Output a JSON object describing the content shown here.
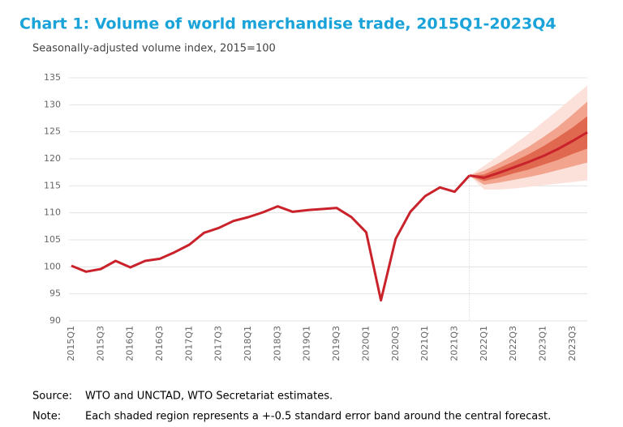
{
  "chart_data": {
    "type": "line",
    "title": "Chart 1: Volume of world merchandise trade, 2015Q1-2023Q4",
    "subtitle": "Seasonally-adjusted volume index, 2015=100",
    "categories": [
      "2015Q1",
      null,
      "2015Q3",
      null,
      "2016Q1",
      null,
      "2016Q3",
      null,
      "2017Q1",
      null,
      "2017Q3",
      null,
      "2018Q1",
      null,
      "2018Q3",
      null,
      "2019Q1",
      null,
      "2019Q3",
      null,
      "2020Q1",
      null,
      "2020Q3",
      null,
      "2021Q1",
      null,
      "2021Q3",
      null,
      "2022Q1",
      null,
      "2022Q3",
      null,
      "2023Q1",
      null,
      "2023Q3",
      null
    ],
    "series": [
      {
        "color": "#c9222b",
        "values": [
          100.2,
          99.1,
          99.6,
          101.1,
          99.9,
          101.1,
          101.5,
          102.7,
          104.1,
          106.3,
          107.2,
          108.5,
          109.2,
          110.1,
          111.2,
          110.2,
          110.5,
          110.7,
          110.9,
          109.2,
          106.4,
          93.8,
          105.2,
          110.2,
          113.1,
          114.7,
          113.9,
          116.9,
          null,
          null,
          null,
          null,
          null,
          null,
          null,
          null
        ]
      },
      {
        "color": "#c9222b",
        "values": [
          null,
          null,
          null,
          null,
          null,
          null,
          null,
          null,
          null,
          null,
          null,
          null,
          null,
          null,
          null,
          null,
          null,
          null,
          null,
          null,
          null,
          null,
          null,
          null,
          null,
          null,
          null,
          116.9,
          116.5,
          117.4,
          118.4,
          119.4,
          120.5,
          121.8,
          123.3,
          124.9
        ]
      }
    ],
    "forecast_bands": [
      {
        "color": "#fbe1da",
        "low": [
          null,
          null,
          null,
          null,
          null,
          null,
          null,
          null,
          null,
          null,
          null,
          null,
          null,
          null,
          null,
          null,
          null,
          null,
          null,
          null,
          null,
          null,
          null,
          null,
          null,
          null,
          null,
          116.9,
          114.3,
          114.3,
          114.5,
          114.8,
          115.1,
          115.4,
          115.7,
          116.0
        ],
        "high": [
          null,
          null,
          null,
          null,
          null,
          null,
          null,
          null,
          null,
          null,
          null,
          null,
          null,
          null,
          null,
          null,
          null,
          null,
          null,
          null,
          null,
          null,
          null,
          null,
          null,
          null,
          null,
          116.9,
          118.7,
          120.6,
          122.6,
          124.6,
          126.8,
          129.0,
          131.3,
          133.6
        ]
      },
      {
        "color": "#f2a48e",
        "low": [
          null,
          null,
          null,
          null,
          null,
          null,
          null,
          null,
          null,
          null,
          null,
          null,
          null,
          null,
          null,
          null,
          null,
          null,
          null,
          null,
          null,
          null,
          null,
          null,
          null,
          null,
          null,
          116.9,
          115.2,
          115.6,
          116.1,
          116.6,
          117.2,
          117.9,
          118.6,
          119.3
        ],
        "high": [
          null,
          null,
          null,
          null,
          null,
          null,
          null,
          null,
          null,
          null,
          null,
          null,
          null,
          null,
          null,
          null,
          null,
          null,
          null,
          null,
          null,
          null,
          null,
          null,
          null,
          null,
          null,
          116.9,
          117.8,
          119.2,
          120.7,
          122.2,
          124.0,
          125.9,
          128.2,
          130.6
        ]
      },
      {
        "color": "#e0684f",
        "low": [
          null,
          null,
          null,
          null,
          null,
          null,
          null,
          null,
          null,
          null,
          null,
          null,
          null,
          null,
          null,
          null,
          null,
          null,
          null,
          null,
          null,
          null,
          null,
          null,
          null,
          null,
          null,
          116.9,
          115.9,
          116.5,
          117.3,
          118.0,
          118.9,
          119.8,
          120.9,
          121.9
        ],
        "high": [
          null,
          null,
          null,
          null,
          null,
          null,
          null,
          null,
          null,
          null,
          null,
          null,
          null,
          null,
          null,
          null,
          null,
          null,
          null,
          null,
          null,
          null,
          null,
          null,
          null,
          null,
          null,
          116.9,
          117.1,
          118.3,
          119.5,
          120.8,
          122.3,
          124.0,
          125.8,
          127.9
        ]
      }
    ],
    "ylim": [
      90,
      135
    ],
    "yticks": [
      90,
      95,
      100,
      105,
      110,
      115,
      120,
      125,
      130,
      135
    ],
    "grid": true,
    "source_label": "Source:",
    "source": "WTO and UNCTAD, WTO Secretariat estimates.",
    "note_label": "Note:",
    "note": "Each shaded region represents a +-0.5 standard error band around the central forecast."
  }
}
